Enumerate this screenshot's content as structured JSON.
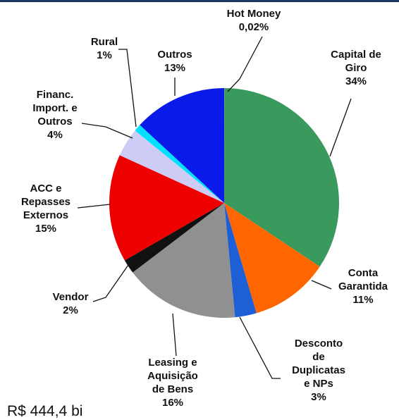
{
  "chart_data": {
    "type": "pie",
    "categories": [
      "Hot Money",
      "Capital de\nGiro",
      "Conta\nGarantida",
      "Desconto\nde\nDuplicatas\ne NPs",
      "Leasing e\nAquisição\nde Bens",
      "Vendor",
      "ACC e\nRepasses\nExternos",
      "Financ.\nImport. e\nOutros",
      "Rural",
      "Outros"
    ],
    "values": [
      0.02,
      34,
      11,
      3,
      16,
      2,
      15,
      4,
      1,
      13
    ],
    "value_labels": [
      "0,02%",
      "34%",
      "11%",
      "3%",
      "16%",
      "2%",
      "15%",
      "4%",
      "1%",
      "13%"
    ],
    "colors": [
      "#f5c400",
      "#3a9a5e",
      "#ff6600",
      "#1f5fd6",
      "#909090",
      "#111111",
      "#ee0000",
      "#ccccf5",
      "#00e0ff",
      "#0a1ae8"
    ],
    "annotation": "R$ 444,4 bi"
  }
}
